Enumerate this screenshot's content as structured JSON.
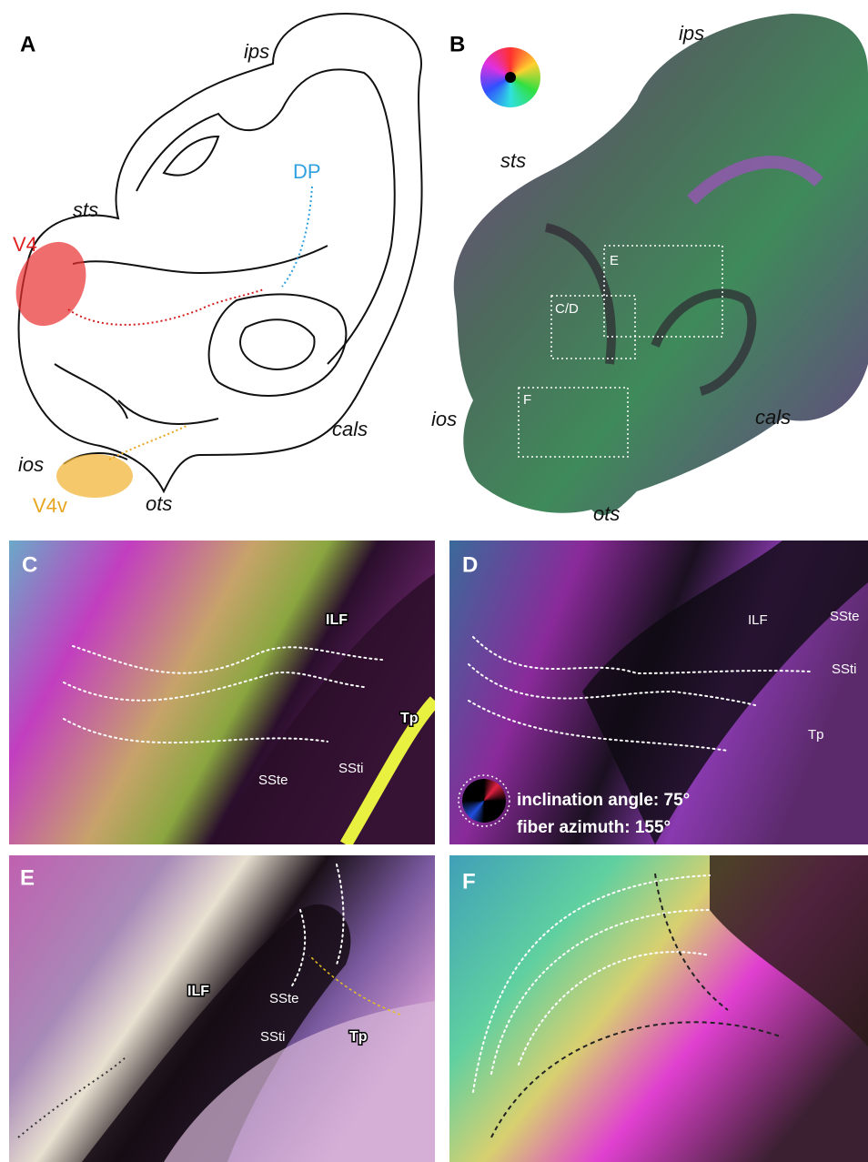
{
  "panel_a": {
    "label": "A",
    "sulci": [
      "ips",
      "sts",
      "ios",
      "ots",
      "cals"
    ],
    "areas": [
      "V4",
      "DP",
      "V4v"
    ]
  },
  "panel_b": {
    "label": "B",
    "sulci": [
      "ips",
      "sts",
      "ios",
      "cals",
      "ots"
    ],
    "boxes": [
      "E",
      "C/D",
      "F"
    ]
  },
  "panel_c": {
    "label": "C",
    "structures": [
      "ILF",
      "Tp",
      "SSte",
      "SSti"
    ]
  },
  "panel_d": {
    "label": "D",
    "structures": [
      "ILF",
      "SSte",
      "SSti",
      "Tp"
    ],
    "legend": [
      "inclination angle: 75°",
      "fiber azimuth: 155°"
    ]
  },
  "panel_e": {
    "label": "E",
    "structures": [
      "ILF",
      "SSte",
      "SSti",
      "Tp"
    ]
  },
  "panel_f": {
    "label": "F"
  }
}
